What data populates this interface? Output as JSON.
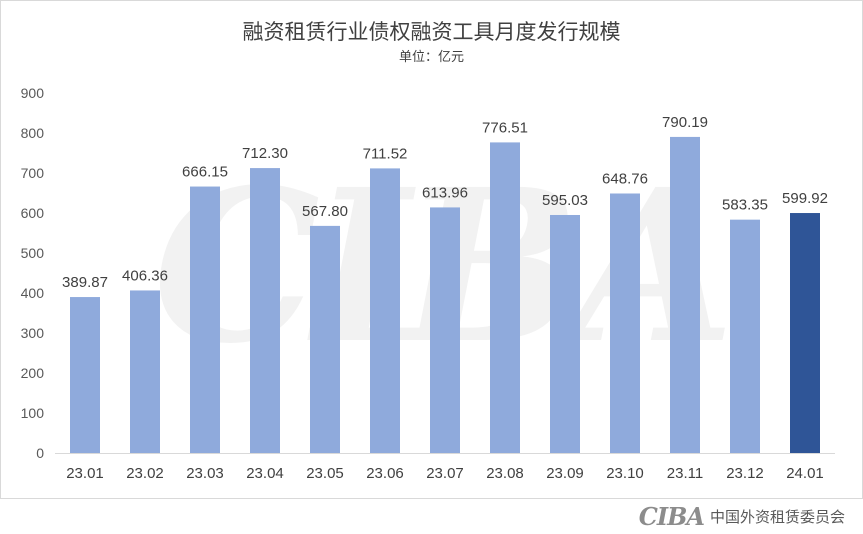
{
  "chart_data": {
    "type": "bar",
    "title": "融资租赁行业债权融资工具月度发行规模",
    "subtitle": "单位：亿元",
    "categories": [
      "23.01",
      "23.02",
      "23.03",
      "23.04",
      "23.05",
      "23.06",
      "23.07",
      "23.08",
      "23.09",
      "23.10",
      "23.11",
      "23.12",
      "24.01"
    ],
    "values": [
      389.87,
      406.36,
      666.15,
      712.3,
      567.8,
      711.52,
      613.96,
      776.51,
      595.03,
      648.76,
      790.19,
      583.35,
      599.92
    ],
    "value_labels": [
      "389.87",
      "406.36",
      "666.15",
      "712.30",
      "567.80",
      "711.52",
      "613.96",
      "776.51",
      "595.03",
      "648.76",
      "790.19",
      "583.35",
      "599.92"
    ],
    "y_ticks": [
      "0",
      "100",
      "200",
      "300",
      "400",
      "500",
      "600",
      "700",
      "800",
      "900"
    ],
    "ylim": [
      0,
      900
    ],
    "grid": false,
    "colors": {
      "bar": "#8faadc",
      "highlight_bar": "#2f5597",
      "label": "#404040",
      "axis": "#d9d9d9"
    },
    "highlight_index": 12
  },
  "watermark": {
    "text": "CIBA"
  },
  "footer": {
    "logo": "CIBA",
    "org": "中国外资租赁委员会"
  }
}
